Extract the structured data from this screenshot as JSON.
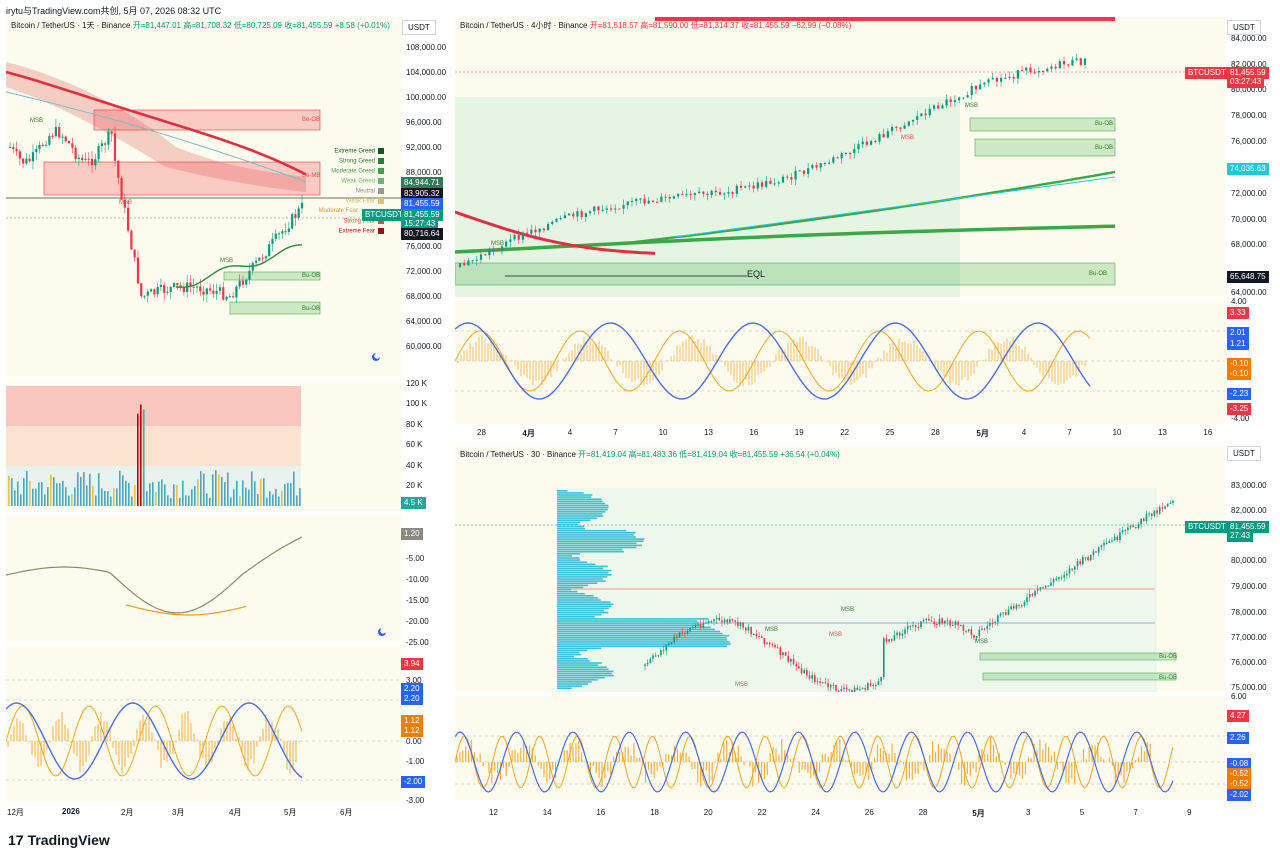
{
  "header": {
    "text": "irytu与TradingView.com共创, 5月 07, 2026 08:32 UTC"
  },
  "colors": {
    "up": "#089981",
    "down": "#f23645",
    "accent": "#2962ff",
    "orange": "#f7a600",
    "cyan": "#26c6da"
  },
  "left_chart": {
    "legend": {
      "symbol": "Bitcoin / TetherUS · 1天 · Binance",
      "open": "开=81,447.01",
      "high": "高=81,708.32",
      "low": "低=80,725.09",
      "close": "收=81,455.59",
      "change": "+8.58 (+0.01%)"
    },
    "unit": "USDT",
    "price_axis": [
      "108,000.00",
      "104,000.00",
      "100,000.00",
      "96,000.00",
      "92,000.00",
      "88,000.00",
      "76,000.00",
      "72,000.00",
      "68,000.00",
      "64,000.00",
      "60,000.00"
    ],
    "tags": {
      "t1": "84,944.71",
      "t2": "83,905.32",
      "t3": "81,455.59",
      "t4": "BTCUSDT",
      "t5": "81,455.59",
      "t6": "15:27:43",
      "t7": "80,716.64"
    },
    "fear_greed": [
      "Extreme Greed",
      "Strong Greed",
      "Moderate Greed",
      "Weak Greed",
      "Neutral",
      "Weak Fear",
      "Moderate Fear",
      "Strong Fear",
      "Extreme Fear"
    ],
    "ob_labels": {
      "bu": "Bu-OB",
      "be": "Be-OB",
      "bm": "Be-MB",
      "msb": "MSB"
    },
    "vol_axis": [
      "120 K",
      "100 K",
      "80 K",
      "60 K",
      "40 K",
      "20 K"
    ],
    "vol_tag": "4.5 K",
    "osc_axis": [
      "-5.00",
      "-10.00",
      "-15.00",
      "-20.00",
      "-25.00"
    ],
    "osc_tag": "1.20",
    "osc2_axis": [
      "3.00",
      "2.00",
      "0.00",
      "-1.00",
      "-2.00",
      "-3.00"
    ],
    "osc2_tags": {
      "a": "3.94",
      "b": "2.20",
      "c": "2.20",
      "d": "1.12",
      "e": "1.12",
      "f": "-2.00"
    },
    "x_axis": [
      "12月",
      "2026",
      "2月",
      "3月",
      "4月",
      "5月",
      "6月"
    ]
  },
  "right_top": {
    "legend": {
      "symbol": "Bitcoin / TetherUS · 4小时 · Binance",
      "open": "开=81,518.57",
      "high": "高=81,590.00",
      "low": "低=81,314.37",
      "close": "收=81,455.59",
      "change": "−62.99 (−0.08%)"
    },
    "unit": "USDT",
    "price_axis": [
      "84,000.00",
      "82,000.00",
      "80,000.00",
      "78,000.00",
      "76,000.00",
      "72,000.00",
      "70,000.00",
      "68,000.00",
      "66,000.00",
      "64,000.00"
    ],
    "tags": {
      "sym": "BTCUSDT",
      "price": "81,455.59",
      "time": "03:27:43",
      "p2": "74,035.63",
      "p3": "65,648.75"
    },
    "eql": "EQL",
    "osc_axis": [
      "4.00",
      "2.00",
      "0.00",
      "-2.00",
      "-4.00"
    ],
    "osc_tags": {
      "a": "3.33",
      "b": "2.01",
      "c": "1.21",
      "d": "-0.10",
      "e": "-0.10",
      "f": "-2.23",
      "g": "-3.25"
    },
    "x_axis": [
      "28",
      "4月",
      "4",
      "7",
      "10",
      "13",
      "16",
      "19",
      "22",
      "25",
      "28",
      "5月",
      "4",
      "7",
      "10",
      "13",
      "16"
    ]
  },
  "right_bottom": {
    "legend": {
      "symbol": "Bitcoin / TetherUS · 30 · Binance",
      "open": "开=81,419.04",
      "high": "高=81,483.36",
      "low": "低=81,419.04",
      "close": "收=81,455.59",
      "change": "+36.54 (+0.04%)"
    },
    "unit": "USDT",
    "price_axis": [
      "83,000.00",
      "82,000.00",
      "80,000.00",
      "79,000.00",
      "78,000.00",
      "77,000.00",
      "76,000.00",
      "75,000.00"
    ],
    "tags": {
      "sym": "BTCUSDT",
      "price": "81,455.59",
      "time": "27:43"
    },
    "osc_axis": [
      "6.00"
    ],
    "osc_tags": {
      "a": "4.27",
      "b": "2.26",
      "c": "-0.08",
      "d": "-0.52",
      "e": "-0.52",
      "f": "-2.02"
    },
    "x_axis": [
      "12",
      "14",
      "16",
      "18",
      "20",
      "22",
      "24",
      "26",
      "28",
      "5月",
      "3",
      "5",
      "7",
      "9"
    ]
  },
  "brand": {
    "name": "TradingView",
    "logo": "17"
  }
}
